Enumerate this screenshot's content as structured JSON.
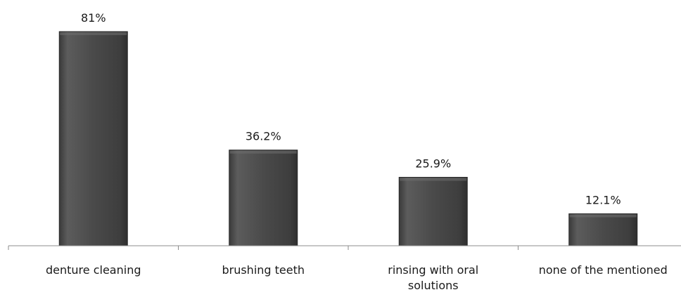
{
  "chart_data": {
    "type": "bar",
    "categories": [
      "denture cleaning",
      "brushing teeth",
      "rinsing with oral solutions",
      "none of the mentioned"
    ],
    "category_lines": [
      [
        "denture cleaning"
      ],
      [
        "brushing teeth"
      ],
      [
        "rinsing with oral",
        "solutions"
      ],
      [
        "none of the mentioned"
      ]
    ],
    "values": [
      81,
      36.2,
      25.9,
      12.1
    ],
    "data_labels": [
      "81%",
      "36.2%",
      "25.9%",
      "12.1%"
    ],
    "unit": "%",
    "title": "",
    "xlabel": "",
    "ylabel": "",
    "ylim": [
      0,
      90
    ],
    "grid": false,
    "legend": "none",
    "bar_color": "#4a4a4a",
    "bar_highlight": "#707070",
    "axis_color": "#8c8c8c"
  }
}
